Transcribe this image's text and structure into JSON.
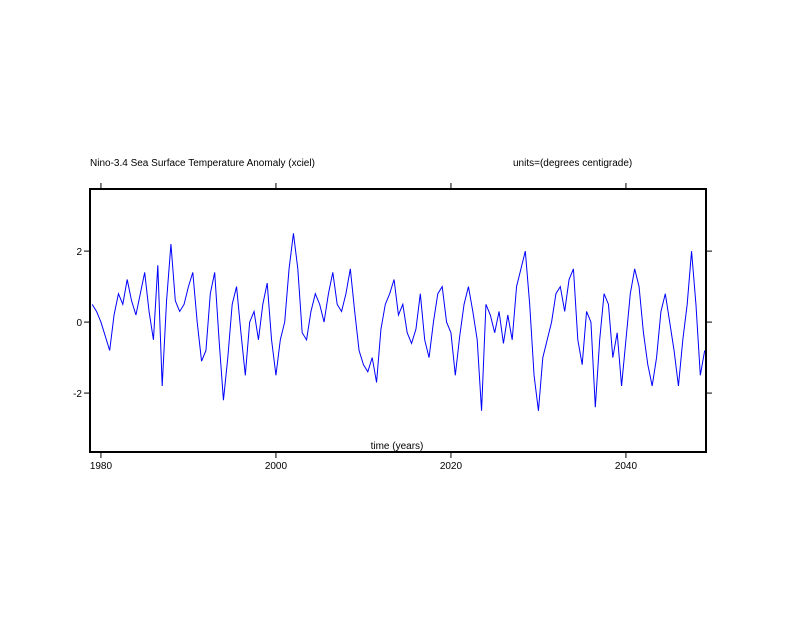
{
  "chart_data": {
    "type": "line",
    "title": "Nino-3.4 Sea Surface Temperature Anomaly (xciel)",
    "subtitle": "units=(degrees centigrade)",
    "xlabel": "time (years)",
    "xlim": [
      1978.75,
      2049.15
    ],
    "ylim": [
      -3.66,
      3.75
    ],
    "xticks": [
      1980,
      2000,
      2020,
      2040
    ],
    "yticks": [
      -2,
      0,
      2
    ],
    "x": [
      1979,
      1979.5,
      1980,
      1980.5,
      1981,
      1981.5,
      1982,
      1982.5,
      1983,
      1983.5,
      1984,
      1984.5,
      1985,
      1985.5,
      1986,
      1986.5,
      1987,
      1987.5,
      1988,
      1988.5,
      1989,
      1989.5,
      1990,
      1990.5,
      1991,
      1991.5,
      1992,
      1992.5,
      1993,
      1993.5,
      1994,
      1994.5,
      1995,
      1995.5,
      1996,
      1996.5,
      1997,
      1997.5,
      1998,
      1998.5,
      1999,
      1999.5,
      2000,
      2000.5,
      2001,
      2001.5,
      2002,
      2002.5,
      2003,
      2003.5,
      2004,
      2004.5,
      2005,
      2005.5,
      2006,
      2006.5,
      2007,
      2007.5,
      2008,
      2008.5,
      2009,
      2009.5,
      2010,
      2010.5,
      2011,
      2011.5,
      2012,
      2012.5,
      2013,
      2013.5,
      2014,
      2014.5,
      2015,
      2015.5,
      2016,
      2016.5,
      2017,
      2017.5,
      2018,
      2018.5,
      2019,
      2019.5,
      2020,
      2020.5,
      2021,
      2021.5,
      2022,
      2022.5,
      2023,
      2023.5,
      2024,
      2024.5,
      2025,
      2025.5,
      2026,
      2026.5,
      2027,
      2027.5,
      2028,
      2028.5,
      2029,
      2029.5,
      2030,
      2030.5,
      2031,
      2031.5,
      2032,
      2032.5,
      2033,
      2033.5,
      2034,
      2034.5,
      2035,
      2035.5,
      2036,
      2036.5,
      2037,
      2037.5,
      2038,
      2038.5,
      2039,
      2039.5,
      2040,
      2040.5,
      2041,
      2041.5,
      2042,
      2042.5,
      2043,
      2043.5,
      2044,
      2044.5,
      2045,
      2045.5,
      2046,
      2046.5,
      2047,
      2047.5,
      2048,
      2048.5,
      2049
    ],
    "series": [
      {
        "color": "#0000ff",
        "values": [
          0.5,
          0.3,
          0.0,
          -0.4,
          -0.8,
          0.2,
          0.8,
          0.5,
          1.2,
          0.6,
          0.2,
          0.8,
          1.4,
          0.3,
          -0.5,
          1.6,
          -1.8,
          0.6,
          2.2,
          0.6,
          0.3,
          0.5,
          1.0,
          1.4,
          0.0,
          -1.1,
          -0.8,
          0.8,
          1.4,
          -0.5,
          -2.2,
          -1.0,
          0.5,
          1.0,
          -0.3,
          -1.5,
          0.0,
          0.3,
          -0.5,
          0.5,
          1.1,
          -0.5,
          -1.5,
          -0.5,
          0.0,
          1.5,
          2.5,
          1.5,
          -0.3,
          -0.5,
          0.3,
          0.8,
          0.5,
          0.0,
          0.8,
          1.4,
          0.5,
          0.3,
          0.8,
          1.5,
          0.3,
          -0.8,
          -1.2,
          -1.4,
          -1.0,
          -1.7,
          -0.2,
          0.5,
          0.8,
          1.2,
          0.2,
          0.5,
          -0.3,
          -0.6,
          -0.2,
          0.8,
          -0.5,
          -1.0,
          0.0,
          0.8,
          1.0,
          0.0,
          -0.3,
          -1.5,
          -0.4,
          0.5,
          1.0,
          0.3,
          -0.5,
          -2.5,
          0.5,
          0.2,
          -0.3,
          0.3,
          -0.6,
          0.2,
          -0.5,
          1.0,
          1.5,
          2.0,
          0.5,
          -1.5,
          -2.5,
          -1.0,
          -0.5,
          0.0,
          0.8,
          1.0,
          0.3,
          1.2,
          1.5,
          -0.5,
          -1.2,
          0.3,
          0.0,
          -2.4,
          -0.5,
          0.8,
          0.5,
          -1.0,
          -0.3,
          -1.8,
          -0.5,
          0.8,
          1.5,
          1.0,
          -0.3,
          -1.2,
          -1.8,
          -1.0,
          0.3,
          0.8,
          0.0,
          -0.8,
          -1.8,
          -0.5,
          0.5,
          2.0,
          0.5,
          -1.5,
          -0.8
        ]
      }
    ]
  }
}
